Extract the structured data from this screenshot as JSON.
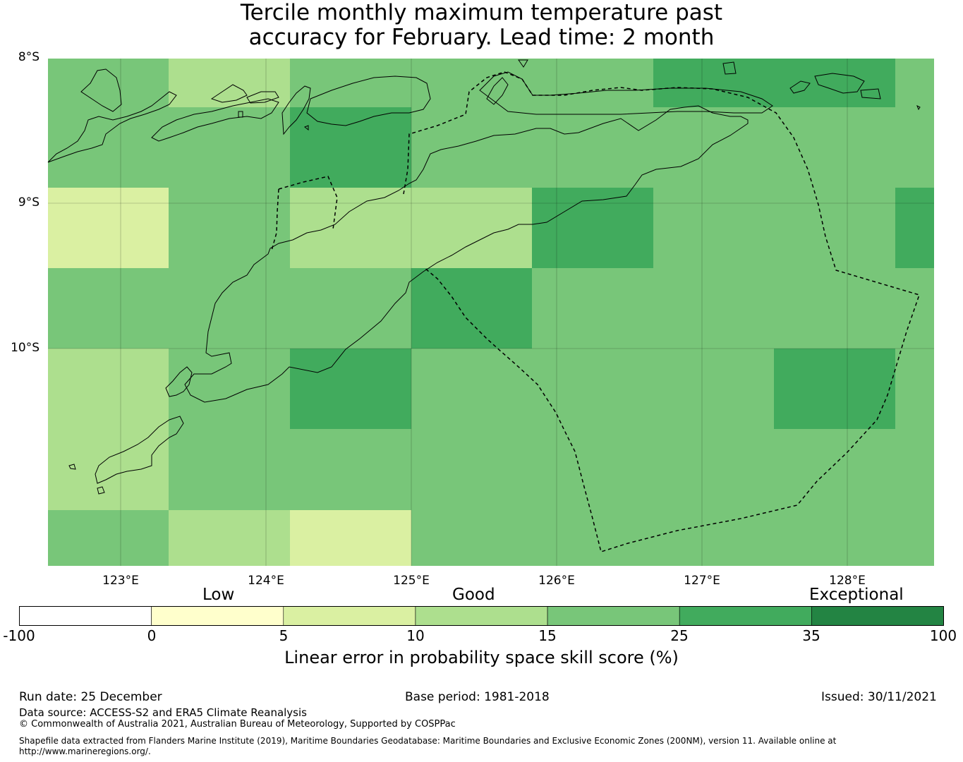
{
  "title_line1": "Tercile monthly maximum temperature past",
  "title_line2": "accuracy for February. Lead time: 2 month",
  "map": {
    "lat_labels": [
      "8°S",
      "9°S",
      "10°S"
    ],
    "lon_labels": [
      "123°E",
      "124°E",
      "125°E",
      "126°E",
      "127°E",
      "128°E"
    ],
    "grid_colors": {
      "c10": "#daf0a2",
      "c15": "#addf8e",
      "c25": "#78c679",
      "c35": "#41ab5d"
    },
    "grid": [
      [
        "c25",
        "c15",
        "c25",
        "c25",
        "c25",
        "c35",
        "c35",
        "c25"
      ],
      [
        "c25",
        "c25",
        "c35",
        "c25",
        "c25",
        "c25",
        "c25",
        "c25"
      ],
      [
        "c10",
        "c25",
        "c15",
        "c15",
        "c35",
        "c25",
        "c25",
        "c35"
      ],
      [
        "c25",
        "c25",
        "c25",
        "c35",
        "c25",
        "c25",
        "c25",
        "c25"
      ],
      [
        "c15",
        "c25",
        "c35",
        "c25",
        "c25",
        "c25",
        "c35",
        "c25"
      ],
      [
        "c15",
        "c25",
        "c25",
        "c25",
        "c25",
        "c25",
        "c25",
        "c25"
      ],
      [
        "c25",
        "c15",
        "c10",
        "c25",
        "c25",
        "c25",
        "c25",
        "c25"
      ]
    ]
  },
  "colorbar": {
    "categories": [
      "Low",
      "Good",
      "Exceptional"
    ],
    "ticks": [
      "-100",
      "0",
      "5",
      "10",
      "15",
      "25",
      "35",
      "100"
    ],
    "colors": [
      "#ffffff",
      "#ffffcc",
      "#daf0a2",
      "#addf8e",
      "#78c679",
      "#41ab5d",
      "#238443"
    ],
    "label": "Linear error in probability space skill score (%)"
  },
  "footer": {
    "run_date": "Run date: 25 December",
    "base_period": "Base period: 1981-2018",
    "issued": "Issued: 30/11/2021",
    "data_source": "Data source: ACCESS-S2 and ERA5 Climate Reanalysis",
    "copyright": "© Commonwealth of Australia 2021, Australian Bureau of Meteorology, Supported by COSPPac",
    "shapefile_line1": "Shapefile data extracted from Flanders Marine Institute (2019), Maritime Boundaries Geodatabase: Maritime Boundaries and Exclusive Economic Zones (200NM), version 11. Available online at",
    "shapefile_line2": "http://www.marineregions.org/."
  }
}
